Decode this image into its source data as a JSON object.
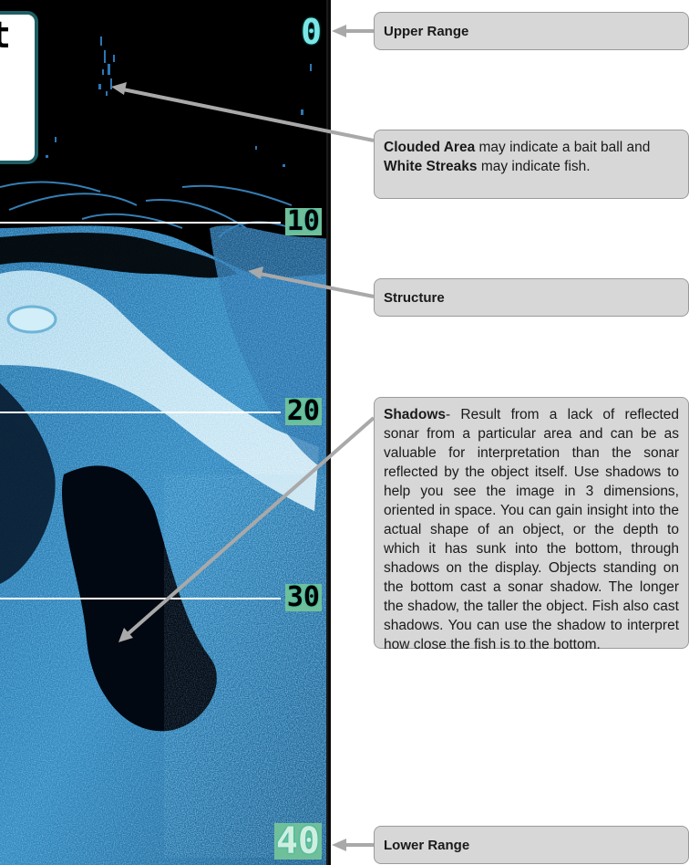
{
  "colors": {
    "sonar_bg": "#000000",
    "return_dark": "#0b3a66",
    "return_mid": "#1f6fa8",
    "return_light": "#7fc4e6",
    "return_bright": "#dff3fb",
    "callout_bg": "#d7d7d7",
    "arrow": "#a9a9a9"
  },
  "window_fragment": {
    "visible_text": "t"
  },
  "depth_scale": {
    "labels": [
      "0",
      "10",
      "20",
      "30",
      "40"
    ]
  },
  "callouts": {
    "upper_range": {
      "title": "Upper Range"
    },
    "clouded": {
      "bold1": "Clouded Area",
      "text1": " may indicate a bait ball and ",
      "bold2": "White Streaks",
      "text2": " may indicate fish."
    },
    "structure": {
      "title": "Structure"
    },
    "shadows": {
      "bold": "Shadows",
      "text": "- Result from a lack of reflected sonar from a particular area and can be as valuable for interpretation than the sonar reflected by the object itself. Use shadows to help you see the image in 3 dimensions, oriented in space. You can gain insight into the actual shape of an object, or the depth to which it has sunk into the bottom, through shadows on the display. Objects standing on the bottom cast a sonar shadow. The longer the shadow, the taller the object. Fish also cast shadows. You can use the shadow to interpret how close the fish is to the bottom."
    },
    "lower_range": {
      "title": "Lower Range"
    }
  }
}
